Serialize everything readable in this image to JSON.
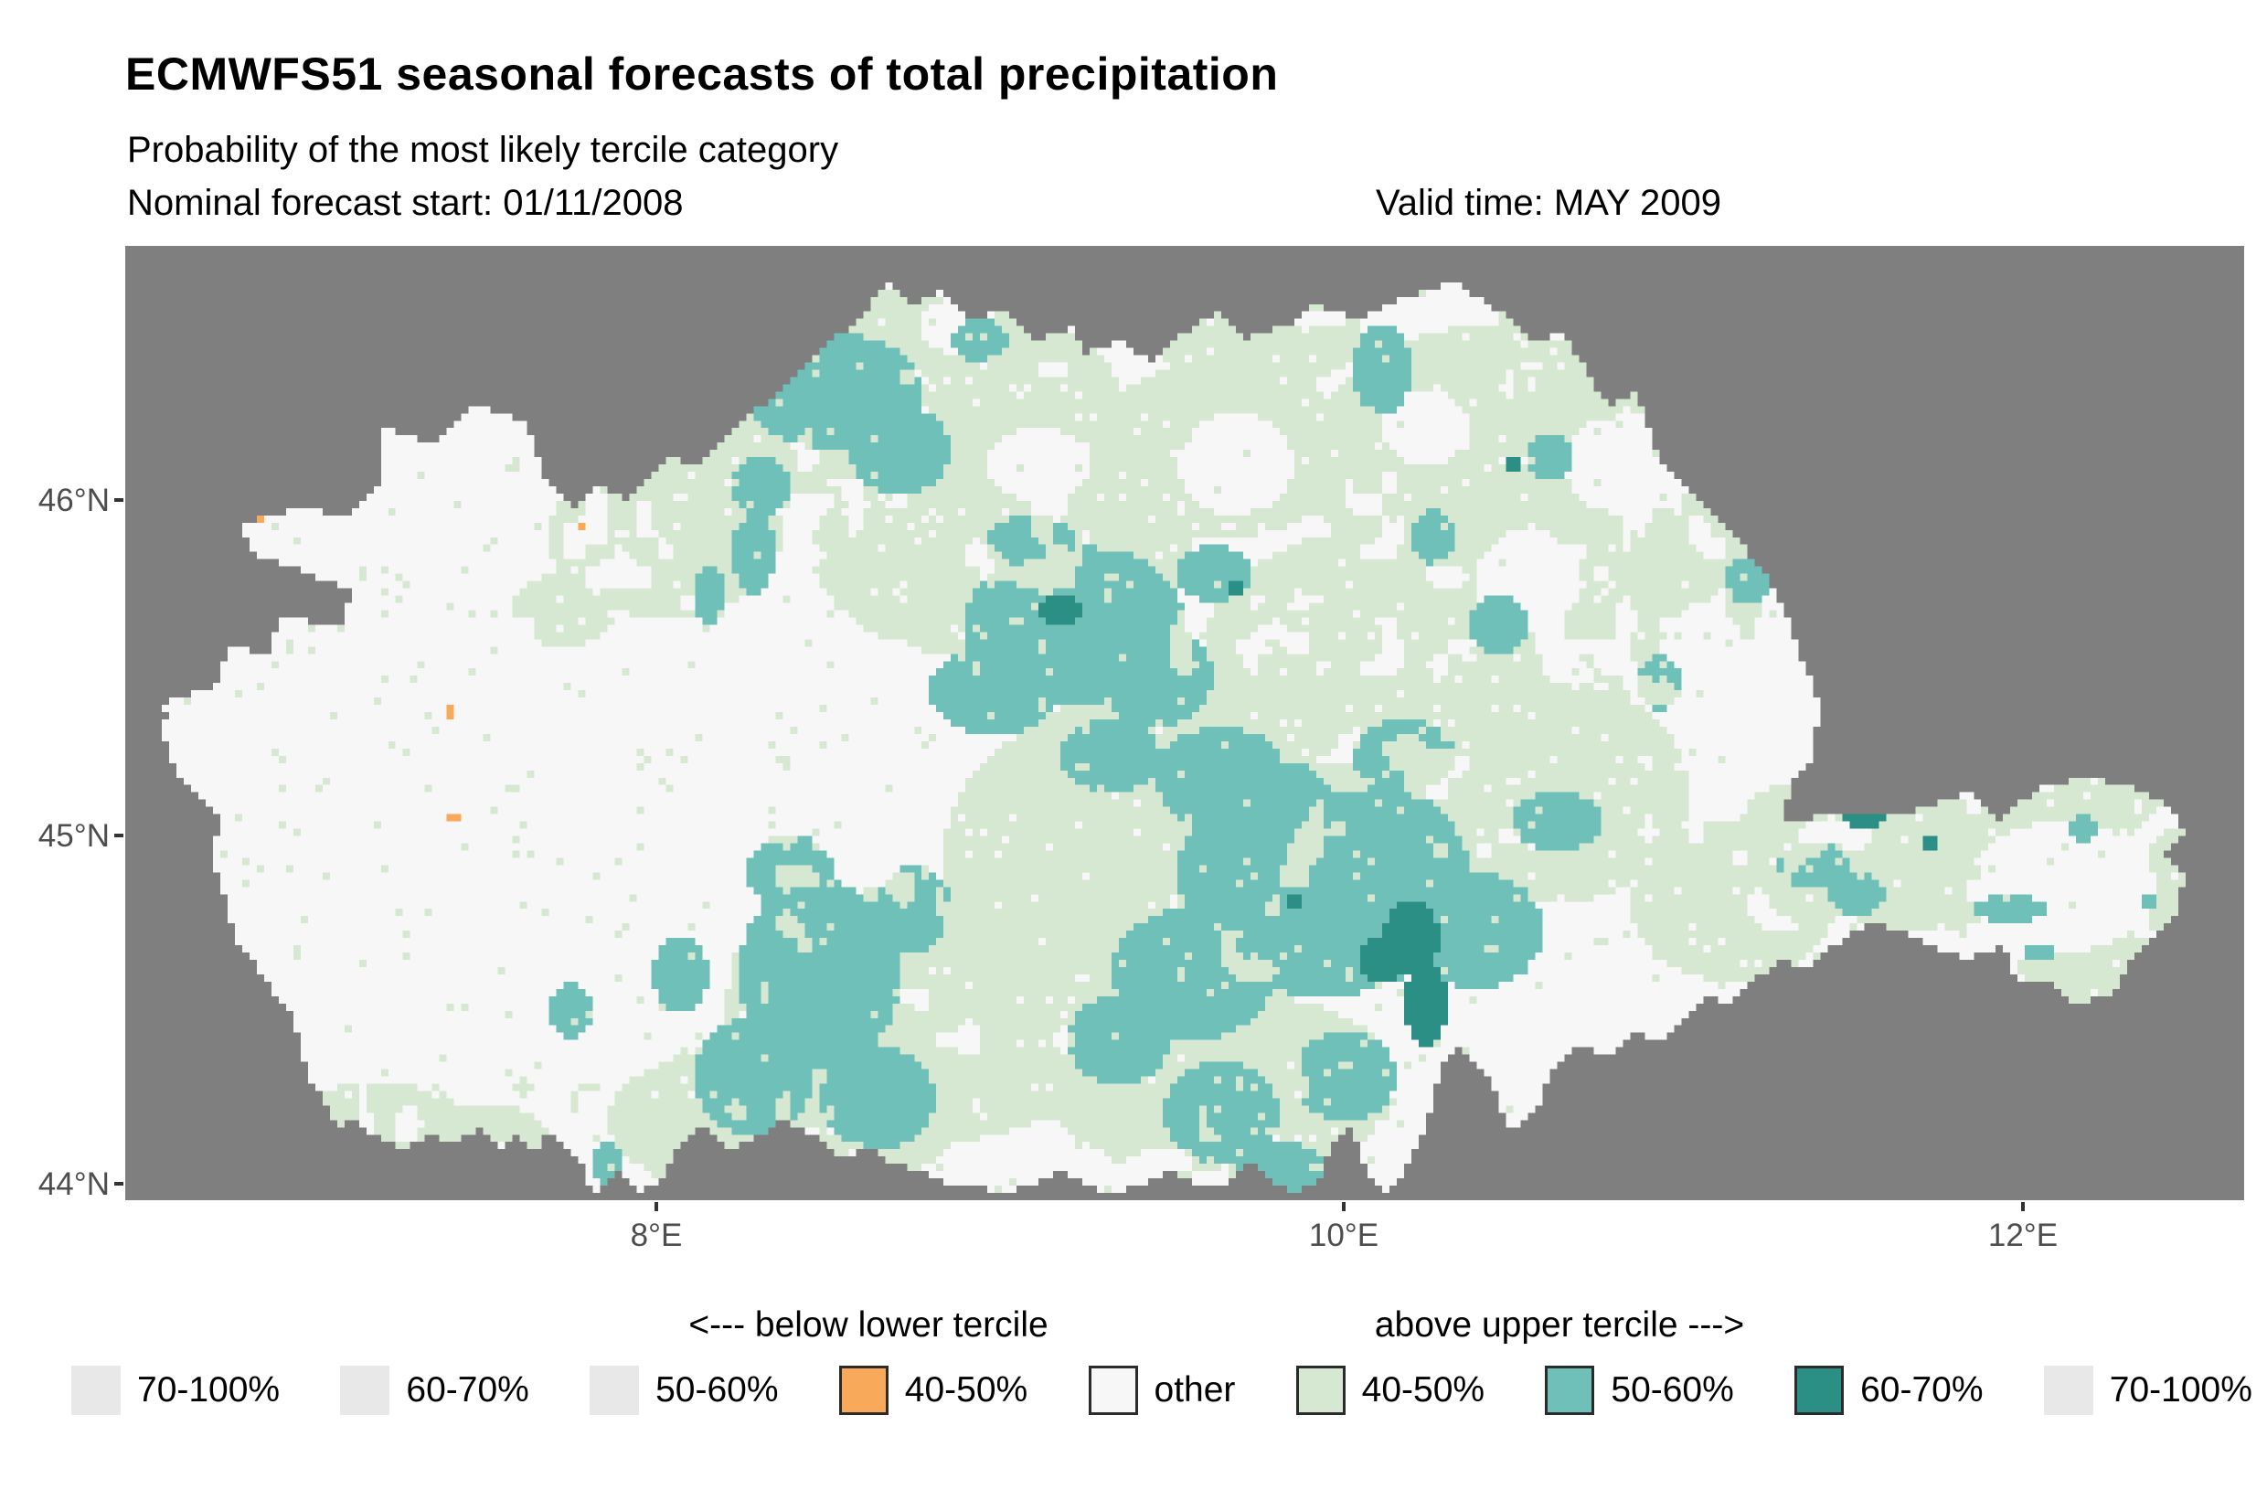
{
  "header": {
    "title": "ECMWFS51 seasonal forecasts of total precipitation",
    "subtitle": "Probability of the most likely tercile category",
    "forecast_start": "Nominal forecast start: 01/11/2008",
    "valid_time": "Valid time: MAY 2009"
  },
  "map": {
    "background_color": "#7f7f7f",
    "palette": {
      "other": "#f7f7f7",
      "above_40_50": "#d6e8d2",
      "above_50_60": "#6fc0b8",
      "above_60_70": "#2b8f85",
      "below_40_50": "#f8a95a"
    },
    "axis": {
      "y_ticks": [
        {
          "label": "46°N",
          "y": 547
        },
        {
          "label": "45°N",
          "y": 914
        },
        {
          "label": "44°N",
          "y": 1295
        }
      ],
      "x_ticks": [
        {
          "label": "8°E",
          "x": 718
        },
        {
          "label": "10°E",
          "x": 1470
        },
        {
          "label": "12°E",
          "x": 2213
        }
      ]
    },
    "grid": {
      "cols": 290,
      "rows": 131
    },
    "outline": [
      [
        5,
        63
      ],
      [
        13,
        60
      ],
      [
        14,
        55
      ],
      [
        20,
        56
      ],
      [
        21,
        51
      ],
      [
        30,
        52
      ],
      [
        31,
        47
      ],
      [
        25,
        45
      ],
      [
        17,
        42
      ],
      [
        16,
        38
      ],
      [
        24,
        36
      ],
      [
        31,
        37
      ],
      [
        35,
        32
      ],
      [
        35,
        25
      ],
      [
        42,
        27
      ],
      [
        48,
        22
      ],
      [
        55,
        24
      ],
      [
        57,
        31
      ],
      [
        61,
        36
      ],
      [
        65,
        33
      ],
      [
        69,
        35
      ],
      [
        74,
        29
      ],
      [
        79,
        30
      ],
      [
        84,
        24
      ],
      [
        90,
        20
      ],
      [
        95,
        14
      ],
      [
        100,
        11
      ],
      [
        104,
        5
      ],
      [
        108,
        8
      ],
      [
        112,
        6
      ],
      [
        116,
        10
      ],
      [
        121,
        9
      ],
      [
        125,
        13
      ],
      [
        130,
        11
      ],
      [
        131,
        15
      ],
      [
        136,
        13
      ],
      [
        141,
        16
      ],
      [
        145,
        12
      ],
      [
        150,
        9
      ],
      [
        153,
        13
      ],
      [
        159,
        11
      ],
      [
        163,
        8
      ],
      [
        169,
        10
      ],
      [
        175,
        7
      ],
      [
        182,
        5
      ],
      [
        188,
        9
      ],
      [
        193,
        13
      ],
      [
        197,
        12
      ],
      [
        203,
        22
      ],
      [
        207,
        20
      ],
      [
        210,
        30
      ],
      [
        215,
        34
      ],
      [
        218,
        37
      ],
      [
        222,
        42
      ],
      [
        225,
        46
      ],
      [
        228,
        52
      ],
      [
        230,
        58
      ],
      [
        232,
        63
      ],
      [
        231,
        70
      ],
      [
        228,
        74
      ],
      [
        227,
        79
      ],
      [
        235,
        78
      ],
      [
        243,
        78
      ],
      [
        253,
        75
      ],
      [
        256,
        79
      ],
      [
        263,
        74
      ],
      [
        269,
        73
      ],
      [
        274,
        74
      ],
      [
        278,
        76
      ],
      [
        281,
        78
      ],
      [
        282,
        81
      ],
      [
        279,
        84
      ],
      [
        282,
        86
      ],
      [
        281,
        91
      ],
      [
        278,
        95
      ],
      [
        274,
        99
      ],
      [
        272,
        103
      ],
      [
        267,
        104
      ],
      [
        264,
        101
      ],
      [
        259,
        101
      ],
      [
        257,
        96
      ],
      [
        252,
        98
      ],
      [
        247,
        96
      ],
      [
        243,
        94
      ],
      [
        239,
        93
      ],
      [
        234,
        96
      ],
      [
        230,
        99
      ],
      [
        227,
        98
      ],
      [
        224,
        100
      ],
      [
        220,
        104
      ],
      [
        217,
        103
      ],
      [
        214,
        106
      ],
      [
        210,
        109
      ],
      [
        207,
        108
      ],
      [
        203,
        111
      ],
      [
        199,
        110
      ],
      [
        195,
        114
      ],
      [
        193,
        119
      ],
      [
        190,
        122
      ],
      [
        187,
        115
      ],
      [
        183,
        110
      ],
      [
        180,
        113
      ],
      [
        178,
        121
      ],
      [
        175,
        127
      ],
      [
        173,
        130
      ],
      [
        170,
        127
      ],
      [
        168,
        121
      ],
      [
        165,
        124
      ],
      [
        163,
        129
      ],
      [
        160,
        130
      ],
      [
        158,
        129
      ],
      [
        154,
        126
      ],
      [
        150,
        129
      ],
      [
        147,
        129
      ],
      [
        143,
        127
      ],
      [
        139,
        129
      ],
      [
        135,
        130
      ],
      [
        132,
        129
      ],
      [
        128,
        127
      ],
      [
        124,
        129
      ],
      [
        120,
        130
      ],
      [
        117,
        129
      ],
      [
        113,
        129
      ],
      [
        109,
        127
      ],
      [
        105,
        126
      ],
      [
        102,
        124
      ],
      [
        98,
        125
      ],
      [
        94,
        122
      ],
      [
        90,
        120
      ],
      [
        87,
        122
      ],
      [
        83,
        124
      ],
      [
        79,
        121
      ],
      [
        75,
        125
      ],
      [
        73,
        129
      ],
      [
        70,
        130
      ],
      [
        68,
        127
      ],
      [
        65,
        130
      ],
      [
        64,
        131
      ],
      [
        63,
        126
      ],
      [
        60,
        124
      ],
      [
        58,
        121
      ],
      [
        56,
        125
      ],
      [
        54,
        122
      ],
      [
        52,
        124
      ],
      [
        49,
        121
      ],
      [
        45,
        123
      ],
      [
        42,
        122
      ],
      [
        38,
        124
      ],
      [
        34,
        122
      ],
      [
        32,
        120
      ],
      [
        29,
        121
      ],
      [
        27,
        117
      ],
      [
        25,
        114
      ],
      [
        24,
        110
      ],
      [
        23,
        106
      ],
      [
        20,
        102
      ],
      [
        18,
        99
      ],
      [
        15,
        95
      ],
      [
        14,
        91
      ],
      [
        13,
        87
      ],
      [
        12,
        84
      ],
      [
        13,
        79
      ],
      [
        10,
        75
      ],
      [
        8,
        74
      ],
      [
        6,
        70
      ],
      [
        5,
        66
      ],
      [
        6,
        64
      ]
    ],
    "patches": {
      "green": [
        [
          100,
          20,
          36,
          14
        ],
        [
          155,
          12,
          14,
          8
        ],
        [
          74,
          40,
          16,
          11
        ],
        [
          120,
          42,
          26,
          15
        ],
        [
          150,
          28,
          18,
          12
        ],
        [
          186,
          30,
          24,
          19
        ],
        [
          210,
          46,
          14,
          17
        ],
        [
          170,
          60,
          24,
          21
        ],
        [
          196,
          75,
          18,
          15
        ],
        [
          140,
          85,
          28,
          24
        ],
        [
          110,
          105,
          28,
          18
        ],
        [
          90,
          120,
          24,
          11
        ],
        [
          150,
          115,
          24,
          13
        ],
        [
          220,
          90,
          14,
          11
        ],
        [
          246,
          85,
          17,
          9
        ],
        [
          266,
          77,
          12,
          5
        ],
        [
          270,
          99,
          11,
          5
        ],
        [
          281,
          88,
          5,
          8
        ],
        [
          60,
          50,
          7,
          5
        ],
        [
          9,
          106,
          3,
          8
        ],
        [
          227,
          80,
          6,
          6
        ],
        [
          35,
          120,
          12,
          5
        ],
        [
          50,
          122,
          8,
          4
        ]
      ],
      "white": [
        [
          84,
          64,
          14,
          12
        ],
        [
          95,
          78,
          12,
          12
        ],
        [
          70,
          82,
          12,
          14
        ],
        [
          206,
          30,
          9,
          7
        ],
        [
          192,
          46,
          7,
          7
        ],
        [
          265,
          88,
          13,
          9
        ],
        [
          216,
          57,
          6,
          8
        ],
        [
          114,
          11,
          5,
          4
        ],
        [
          125,
          30,
          7,
          5
        ],
        [
          152,
          30,
          8,
          7
        ],
        [
          178,
          25,
          6,
          5
        ]
      ],
      "teal": [
        [
          97,
          20,
          12,
          8
        ],
        [
          106,
          28,
          7,
          6
        ],
        [
          117,
          13,
          4,
          3
        ],
        [
          87,
          33,
          4,
          4
        ],
        [
          86,
          42,
          3,
          6
        ],
        [
          80,
          48,
          2,
          4
        ],
        [
          130,
          52,
          15,
          11
        ],
        [
          119,
          61,
          9,
          6
        ],
        [
          141,
          59,
          8,
          7
        ],
        [
          149,
          45,
          5,
          4
        ],
        [
          124,
          41,
          6,
          4
        ],
        [
          135,
          70,
          7,
          5
        ],
        [
          172,
          17,
          4,
          6
        ],
        [
          179,
          40,
          3,
          4
        ],
        [
          195,
          29,
          3,
          3
        ],
        [
          188,
          52,
          4,
          4
        ],
        [
          222,
          46,
          3,
          3
        ],
        [
          210,
          60,
          3,
          4
        ],
        [
          164,
          87,
          20,
          16
        ],
        [
          150,
          73,
          9,
          7
        ],
        [
          146,
          100,
          11,
          9
        ],
        [
          175,
          70,
          7,
          5
        ],
        [
          185,
          94,
          9,
          8
        ],
        [
          196,
          79,
          6,
          4
        ],
        [
          150,
          119,
          8,
          7
        ],
        [
          167,
          114,
          7,
          6
        ],
        [
          136,
          109,
          7,
          6
        ],
        [
          158,
          127,
          6,
          4
        ],
        [
          95,
          100,
          11,
          13
        ],
        [
          86,
          114,
          8,
          8
        ],
        [
          103,
          117,
          8,
          7
        ],
        [
          91,
          86,
          6,
          5
        ],
        [
          108,
          91,
          5,
          6
        ],
        [
          76,
          100,
          4,
          5
        ],
        [
          61,
          105,
          3,
          4
        ],
        [
          66,
          126,
          2,
          3
        ],
        [
          231,
          85,
          5,
          3
        ],
        [
          237,
          89,
          4,
          3
        ],
        [
          258,
          91,
          5,
          2
        ],
        [
          268,
          80,
          2,
          2
        ],
        [
          262,
          97,
          2,
          1.5
        ],
        [
          277,
          90,
          1.5,
          1.5
        ]
      ],
      "dark_teal": [
        [
          128,
          50,
          3,
          2.5
        ],
        [
          176,
          95,
          4,
          5
        ],
        [
          178,
          104,
          3,
          6
        ],
        [
          172,
          98,
          3,
          3
        ],
        [
          238,
          78,
          3,
          2
        ],
        [
          247,
          82,
          1.5,
          1.5
        ],
        [
          160,
          90,
          1.5,
          1.5
        ],
        [
          190,
          30,
          1,
          1
        ],
        [
          152,
          47,
          1,
          1
        ]
      ],
      "orange": [
        [
          18.5,
          37,
          0.8,
          0.8
        ],
        [
          62.5,
          38.5,
          0.8,
          0.8
        ],
        [
          44.8,
          64,
          0.8,
          0.8
        ],
        [
          45,
          78.6,
          0.8,
          0.8
        ]
      ]
    }
  },
  "legend": {
    "header_below": "<--- below lower tercile",
    "header_above": "above upper tercile --->",
    "unused_color": "#e8e8e8",
    "items": [
      {
        "label": "70-100%",
        "color": "#e8e8e8",
        "bordered": false
      },
      {
        "label": "60-70%",
        "color": "#e8e8e8",
        "bordered": false
      },
      {
        "label": "50-60%",
        "color": "#e8e8e8",
        "bordered": false
      },
      {
        "label": "40-50%",
        "color": "#f8a95a",
        "bordered": true
      },
      {
        "label": "other",
        "color": "#f7f7f7",
        "bordered": true
      },
      {
        "label": "40-50%",
        "color": "#d6e8d2",
        "bordered": true
      },
      {
        "label": "50-60%",
        "color": "#6fc0b8",
        "bordered": true
      },
      {
        "label": "60-70%",
        "color": "#2b8f85",
        "bordered": true
      },
      {
        "label": "70-100%",
        "color": "#e8e8e8",
        "bordered": false
      }
    ]
  }
}
